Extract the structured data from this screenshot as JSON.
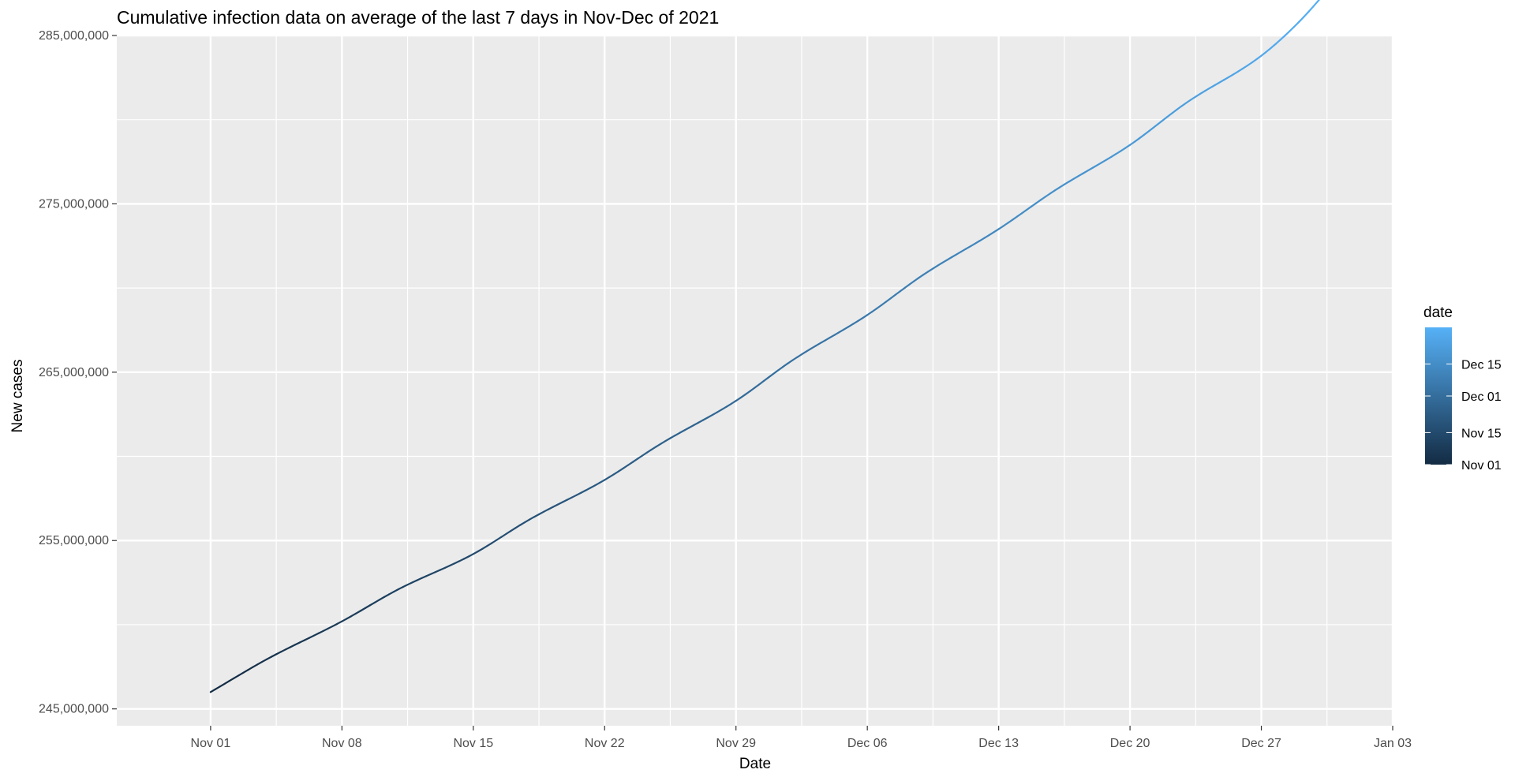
{
  "chart_data": {
    "type": "line",
    "title": "Cumulative infection data on average of the last 7 days in Nov-Dec of 2021",
    "xlabel": "Date",
    "ylabel": "New cases",
    "xlim": [
      "2021-10-27",
      "2022-01-03"
    ],
    "ylim": [
      244000000,
      285000000
    ],
    "x_ticks": [
      {
        "date": "2021-11-01",
        "label": "Nov 01"
      },
      {
        "date": "2021-11-08",
        "label": "Nov 08"
      },
      {
        "date": "2021-11-15",
        "label": "Nov 15"
      },
      {
        "date": "2021-11-22",
        "label": "Nov 22"
      },
      {
        "date": "2021-11-29",
        "label": "Nov 29"
      },
      {
        "date": "2021-12-06",
        "label": "Dec 06"
      },
      {
        "date": "2021-12-13",
        "label": "Dec 13"
      },
      {
        "date": "2021-12-20",
        "label": "Dec 20"
      },
      {
        "date": "2021-12-27",
        "label": "Dec 27"
      },
      {
        "date": "2022-01-03",
        "label": "Jan 03"
      }
    ],
    "y_ticks": [
      {
        "value": 245000000,
        "label": "245,000,000"
      },
      {
        "value": 255000000,
        "label": "255,000,000"
      },
      {
        "value": 265000000,
        "label": "265,000,000"
      },
      {
        "value": 275000000,
        "label": "275,000,000"
      },
      {
        "value": 285000000,
        "label": "285,000,000"
      }
    ],
    "grid": true,
    "legend": {
      "title": "date",
      "type": "colorbar",
      "placement": "right",
      "labels": [
        {
          "date": "2021-11-01",
          "label": "Nov 01"
        },
        {
          "date": "2021-11-15",
          "label": "Nov 15"
        },
        {
          "date": "2021-12-01",
          "label": "Dec 01"
        },
        {
          "date": "2021-12-15",
          "label": "Dec 15"
        }
      ],
      "color_low": "#132B43",
      "color_high": "#56B1F7",
      "domain": [
        "2021-11-01",
        "2021-12-31"
      ]
    },
    "panel_color": "#EBEBEB",
    "grid_color": "#FFFFFF",
    "series": [
      {
        "color_by": "date",
        "x": [
          "2021-11-01",
          "2021-11-04",
          "2021-11-08",
          "2021-11-11",
          "2021-11-15",
          "2021-11-18",
          "2021-11-22",
          "2021-11-25",
          "2021-11-29",
          "2021-12-02",
          "2021-12-06",
          "2021-12-09",
          "2021-12-13",
          "2021-12-16",
          "2021-12-20",
          "2021-12-23",
          "2021-12-27",
          "2021-12-29",
          "2021-12-31"
        ],
        "y": [
          246000000,
          247950000,
          250200000,
          252100000,
          254200000,
          256250000,
          258600000,
          260750000,
          263300000,
          265700000,
          268400000,
          270800000,
          273500000,
          275800000,
          278500000,
          281000000,
          283800000,
          285800000,
          288300000
        ]
      }
    ]
  }
}
